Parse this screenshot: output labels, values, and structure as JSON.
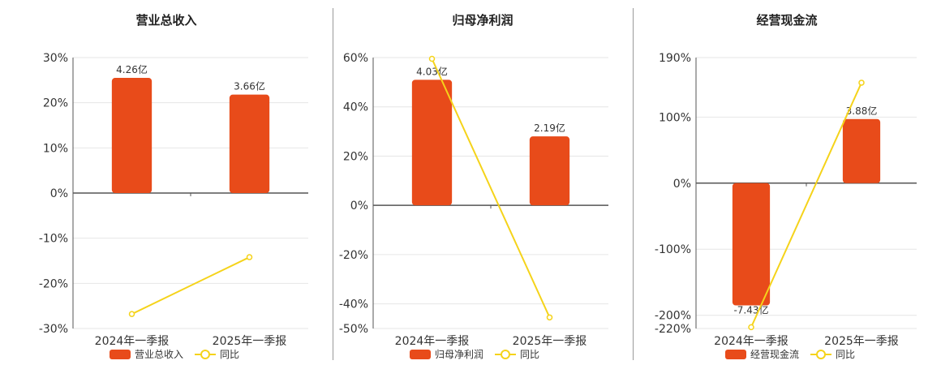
{
  "charts": [
    {
      "title": "营业总收入",
      "yticks": [
        "30%",
        "20%",
        "10%",
        "0%",
        "-10%",
        "-20%",
        "-30%"
      ],
      "legend": {
        "bar": "营业总收入",
        "line": "同比"
      }
    },
    {
      "title": "归母净利润",
      "yticks": [
        "60%",
        "40%",
        "20%",
        "0%",
        "-20%",
        "-40%",
        "-50%"
      ],
      "legend": {
        "bar": "归母净利润",
        "line": "同比"
      }
    },
    {
      "title": "经营现金流",
      "yticks": [
        "190%",
        "100%",
        "0%",
        "-100%",
        "-200%",
        "-220%"
      ],
      "legend": {
        "bar": "经营现金流",
        "line": "同比"
      }
    }
  ],
  "colors": {
    "bar": "#e84b1a",
    "line": "#f5d31a",
    "axis": "#555555",
    "grid": "#e6e6e6"
  },
  "chart_data": [
    {
      "type": "bar",
      "title": "营业总收入",
      "categories": [
        "2024年一季报",
        "2025年一季报"
      ],
      "ylim": [
        -30,
        30
      ],
      "yticks": [
        30,
        20,
        10,
        0,
        -10,
        -20,
        -30
      ],
      "series": [
        {
          "name": "营业总收入",
          "kind": "bar",
          "values": [
            25.5,
            21.8
          ],
          "labels": [
            "4.26亿",
            "3.66亿"
          ]
        },
        {
          "name": "同比",
          "kind": "line",
          "values": [
            -26.8,
            -14.2
          ]
        }
      ]
    },
    {
      "type": "bar",
      "title": "归母净利润",
      "categories": [
        "2024年一季报",
        "2025年一季报"
      ],
      "ylim": [
        -50,
        60
      ],
      "yticks": [
        60,
        40,
        20,
        0,
        -20,
        -40,
        -50
      ],
      "series": [
        {
          "name": "归母净利润",
          "kind": "bar",
          "values": [
            51,
            28
          ],
          "labels": [
            "4.03亿",
            "2.19亿"
          ]
        },
        {
          "name": "同比",
          "kind": "line",
          "values": [
            59.5,
            -45.5
          ]
        }
      ]
    },
    {
      "type": "bar",
      "title": "经营现金流",
      "categories": [
        "2024年一季报",
        "2025年一季报"
      ],
      "ylim": [
        -220,
        190
      ],
      "yticks": [
        190,
        100,
        0,
        -100,
        -200,
        -220
      ],
      "series": [
        {
          "name": "经营现金流",
          "kind": "bar",
          "values": [
            -185,
            97
          ],
          "labels": [
            "-7.43亿",
            "3.88亿"
          ]
        },
        {
          "name": "同比",
          "kind": "line",
          "values": [
            -218,
            152
          ]
        }
      ]
    }
  ]
}
